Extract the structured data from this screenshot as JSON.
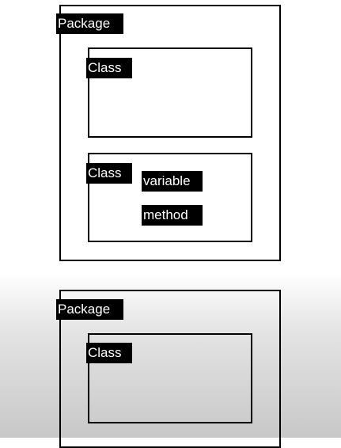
{
  "diagram": {
    "package_label": "Package",
    "class_label": "Class",
    "variable_label": "variable",
    "method_label": "method"
  }
}
